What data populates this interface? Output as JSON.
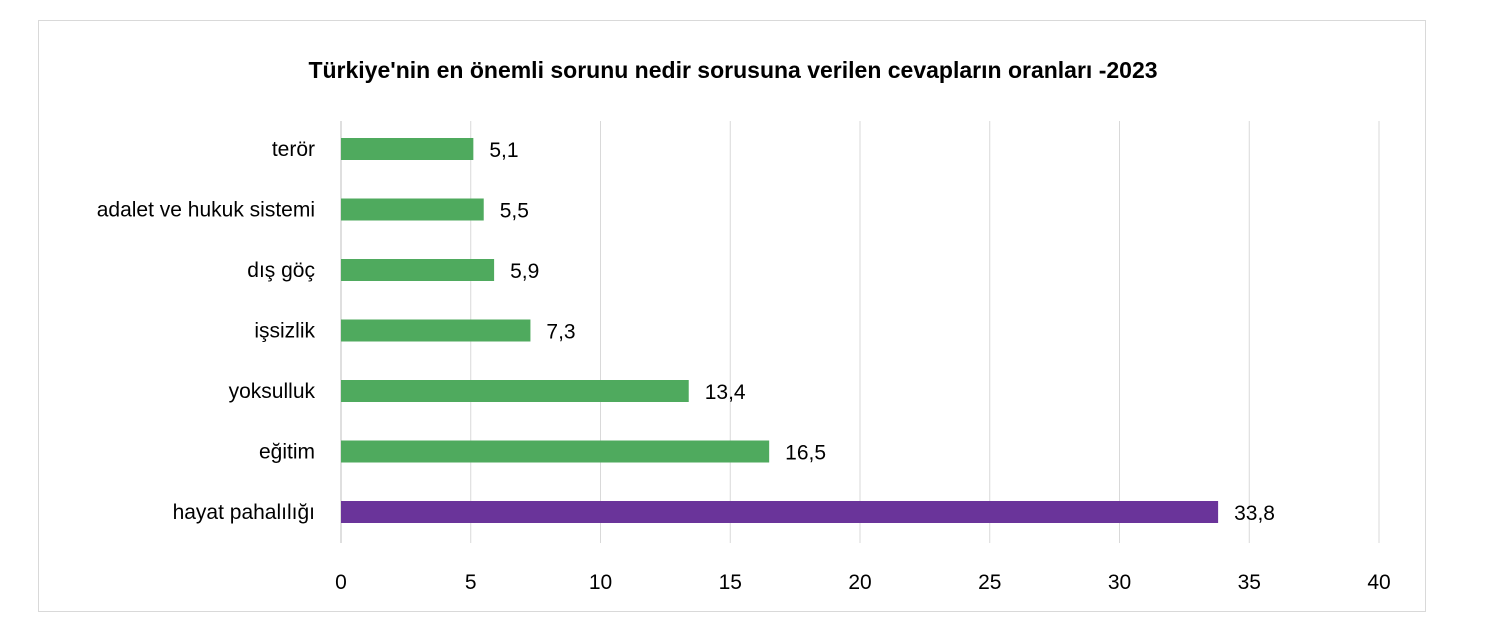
{
  "chart_data": {
    "type": "bar",
    "orientation": "horizontal",
    "title": "Türkiye'nin en önemli sorunu nedir sorusuna verilen cevapların oranları -2023",
    "xlabel": "",
    "ylabel": "",
    "categories": [
      "terör",
      "adalet ve hukuk sistemi",
      "dış göç",
      "işsizlik",
      "yoksulluk",
      "eğitim",
      "hayat pahalılığı"
    ],
    "values": [
      5.1,
      5.5,
      5.9,
      7.3,
      13.4,
      16.5,
      33.8
    ],
    "value_labels": [
      "5,1",
      "5,5",
      "5,9",
      "7,3",
      "13,4",
      "16,5",
      "33,8"
    ],
    "xlim": [
      0,
      40
    ],
    "xticks": [
      0,
      5,
      10,
      15,
      20,
      25,
      30,
      35,
      40
    ],
    "xtick_labels": [
      "0",
      "5",
      "10",
      "15",
      "20",
      "25",
      "30",
      "35",
      "40"
    ],
    "grid": "vertical",
    "legend": "none",
    "colors": {
      "default_bar": "#4faa5e",
      "highlight_bar": "#6a349a",
      "gridline": "#d9d9d9",
      "axis": "#bfbfbf"
    },
    "highlight_category": "hayat pahalılığı"
  }
}
